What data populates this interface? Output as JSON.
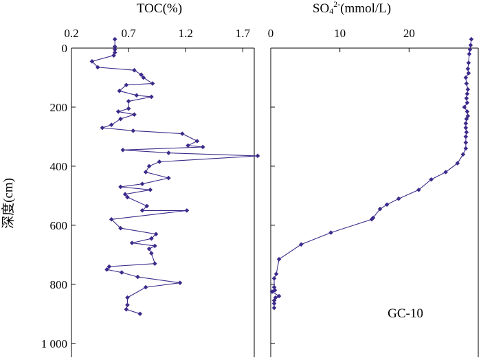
{
  "chart_data": [
    {
      "type": "line",
      "title": "TOC(%)",
      "xlabel": "TOC(%)",
      "ylabel": "深度(cm)",
      "xlim": [
        0.2,
        1.8
      ],
      "ylim": [
        0,
        1000
      ],
      "y_inverted": true,
      "x_axis_position": "top",
      "x_ticks": [
        "0.2",
        "0.7",
        "1.2",
        "1.7"
      ],
      "y_ticks": [
        "0",
        "200",
        "400",
        "600",
        "800",
        "1 000"
      ],
      "grid": false,
      "series": [
        {
          "color": "#3d2a8a",
          "x": [
            0.58,
            0.58,
            0.58,
            0.58,
            0.57,
            0.38,
            0.43,
            0.75,
            0.81,
            0.83,
            0.91,
            0.68,
            0.62,
            0.77,
            0.9,
            0.7,
            0.7,
            0.61,
            0.75,
            0.63,
            0.55,
            0.47,
            0.74,
            1.17,
            1.3,
            1.22,
            1.35,
            0.65,
            1.05,
            1.83,
            0.97,
            0.88,
            0.85,
            1.05,
            0.82,
            0.63,
            0.89,
            0.67,
            0.69,
            0.86,
            0.82,
            1.21,
            0.55,
            0.63,
            0.94,
            0.9,
            0.73,
            0.93,
            0.88,
            0.9,
            0.93,
            0.53,
            0.51,
            0.64,
            0.78,
            1.15,
            0.85,
            0.69,
            0.69,
            0.68,
            0.8
          ],
          "y": [
            -30,
            -5,
            5,
            15,
            25,
            45,
            65,
            75,
            90,
            100,
            120,
            125,
            145,
            160,
            165,
            180,
            205,
            215,
            225,
            240,
            260,
            270,
            280,
            290,
            315,
            330,
            335,
            345,
            355,
            365,
            385,
            400,
            420,
            440,
            460,
            470,
            480,
            495,
            505,
            535,
            550,
            550,
            580,
            610,
            630,
            645,
            660,
            670,
            680,
            695,
            730,
            740,
            750,
            760,
            775,
            795,
            810,
            845,
            870,
            885,
            900
          ]
        }
      ]
    },
    {
      "type": "line",
      "title": "SO₄²⁻(mmol/L)",
      "xlabel": "SO₄²⁻(mmol/L)",
      "xlim": [
        0,
        30
      ],
      "ylim": [
        0,
        1000
      ],
      "y_inverted": true,
      "x_axis_position": "top",
      "x_ticks": [
        "0",
        "10",
        "20"
      ],
      "annotation": "GC-10",
      "grid": false,
      "series": [
        {
          "color": "#3d2a8a",
          "x": [
            29.0,
            28.9,
            28.8,
            28.7,
            28.6,
            28.5,
            28.6,
            28.2,
            28.3,
            28.5,
            28.4,
            28.3,
            28.4,
            28.0,
            28.4,
            28.5,
            28.3,
            28.2,
            28.2,
            28.3,
            28.2,
            28.2,
            28.2,
            27.8,
            27.0,
            25.3,
            23.2,
            21.4,
            18.5,
            16.8,
            15.8,
            14.8,
            14.6,
            8.7,
            4.4,
            1.2,
            0.8,
            0.5,
            0.5,
            0.6,
            0.2,
            1.2,
            0.7,
            0.5,
            0.5,
            0.5
          ],
          "y": [
            -30,
            -10,
            5,
            20,
            50,
            70,
            85,
            100,
            120,
            140,
            155,
            170,
            185,
            200,
            215,
            230,
            240,
            255,
            270,
            285,
            300,
            320,
            340,
            360,
            390,
            420,
            445,
            480,
            510,
            530,
            545,
            575,
            580,
            625,
            665,
            715,
            765,
            780,
            810,
            820,
            825,
            840,
            845,
            855,
            865,
            880
          ]
        }
      ]
    }
  ]
}
